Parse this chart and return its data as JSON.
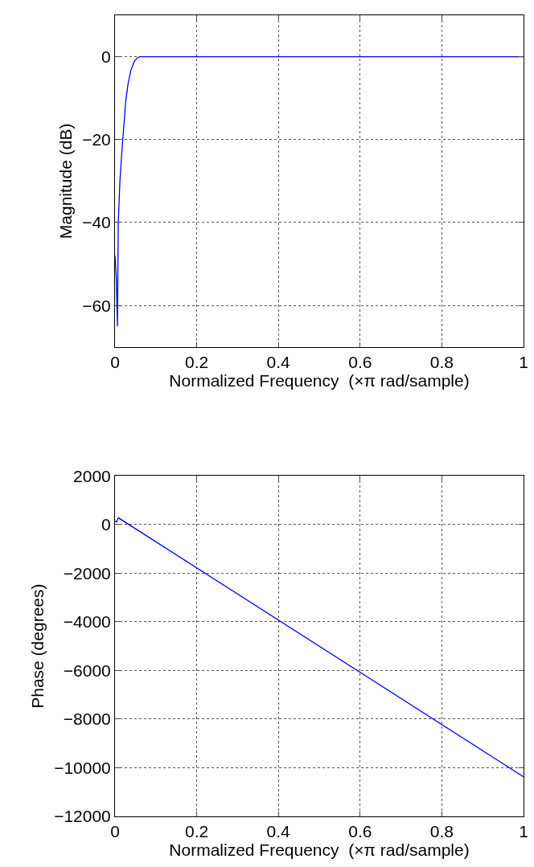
{
  "chart_data": [
    {
      "type": "line",
      "xlabel": "Normalized Frequency  (×π rad/sample)",
      "ylabel": "Magnitude (dB)",
      "xlim": [
        0,
        1
      ],
      "ylim": [
        -70,
        10
      ],
      "xticks": [
        0,
        0.2,
        0.4,
        0.6,
        0.8,
        1
      ],
      "yticks": [
        -60,
        -40,
        -20,
        0
      ],
      "grid": true,
      "series": [
        {
          "color": "#0000ff",
          "x": [
            0,
            0.003,
            0.006,
            0.008,
            0.012,
            0.016,
            0.019,
            0.023,
            0.026,
            0.032,
            0.039,
            0.047,
            0.054,
            0.06,
            0.1,
            0.5,
            1
          ],
          "values": [
            -48,
            -53,
            -65,
            -40,
            -30,
            -24,
            -20,
            -15,
            -11,
            -6.5,
            -3.2,
            -1.2,
            -0.3,
            0,
            0,
            0,
            0
          ]
        }
      ]
    },
    {
      "type": "line",
      "xlabel": "Normalized Frequency  (×π rad/sample)",
      "ylabel": "Phase (degrees)",
      "xlim": [
        0,
        1
      ],
      "ylim": [
        -12000,
        2000
      ],
      "xticks": [
        0,
        0.2,
        0.4,
        0.6,
        0.8,
        1
      ],
      "yticks": [
        -12000,
        -10000,
        -8000,
        -6000,
        -4000,
        -2000,
        0,
        2000
      ],
      "grid": true,
      "series": [
        {
          "color": "#0000ff",
          "x": [
            0,
            0.004,
            0.008,
            1
          ],
          "values": [
            150,
            100,
            280,
            -10370
          ]
        }
      ]
    }
  ]
}
